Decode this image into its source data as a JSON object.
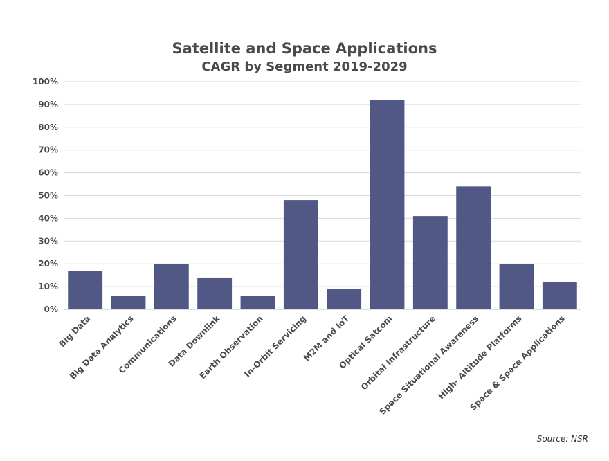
{
  "chart_data": {
    "type": "bar",
    "title": "Satellite and Space Applications",
    "subtitle": "CAGR by Segment 2019-2029",
    "categories": [
      "Big Data",
      "Big Data Analytics",
      "Communications",
      "Data Downlink",
      "Earth Observation",
      "In-Orbit Servicing",
      "M2M and IoT",
      "Optical Satcom",
      "Orbital Infrastructure",
      "Space Situational Awareness",
      "High- Altitude Platforms",
      "Space & Space Applications"
    ],
    "values": [
      17,
      6,
      20,
      14,
      6,
      48,
      9,
      92,
      41,
      54,
      20,
      12
    ],
    "ylim": [
      0,
      100
    ],
    "yticks": [
      "0%",
      "10%",
      "20%",
      "30%",
      "40%",
      "50%",
      "60%",
      "70%",
      "80%",
      "90%",
      "100%"
    ],
    "xlabel": "",
    "ylabel": "",
    "grid": true,
    "bar_color": "#525886",
    "source": "Source: NSR"
  }
}
